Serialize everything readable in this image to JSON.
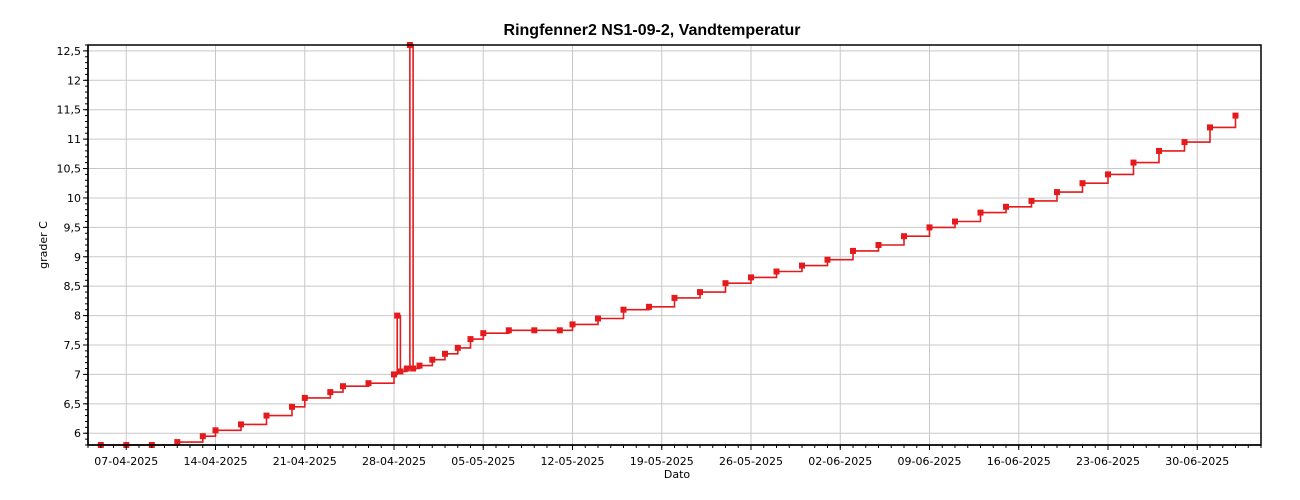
{
  "chart_data": {
    "type": "line",
    "title": "Ringfenner2 NS1-09-2, Vandtemperatur",
    "xlabel": "Dato",
    "ylabel": "grader C",
    "ylim": [
      5.8,
      12.6
    ],
    "xlim": [
      "2025-04-04",
      "2025-07-05"
    ],
    "grid": true,
    "legend": "none",
    "color": "#e41a1c",
    "y_ticks": [
      "6",
      "6,5",
      "7",
      "7,5",
      "8",
      "8,5",
      "9",
      "9,5",
      "10",
      "10,5",
      "11",
      "11,5",
      "12",
      "12,5"
    ],
    "y_tick_values": [
      6,
      6.5,
      7,
      7.5,
      8,
      8.5,
      9,
      9.5,
      10,
      10.5,
      11,
      11.5,
      12,
      12.5
    ],
    "x_ticks": [
      "07-04-2025",
      "14-04-2025",
      "21-04-2025",
      "28-04-2025",
      "05-05-2025",
      "12-05-2025",
      "19-05-2025",
      "26-05-2025",
      "02-06-2025",
      "09-06-2025",
      "16-06-2025",
      "23-06-2025",
      "30-06-2025"
    ],
    "x_tick_dates": [
      "2025-04-07",
      "2025-04-14",
      "2025-04-21",
      "2025-04-28",
      "2025-05-05",
      "2025-05-12",
      "2025-05-19",
      "2025-05-26",
      "2025-06-02",
      "2025-06-09",
      "2025-06-16",
      "2025-06-23",
      "2025-06-30"
    ],
    "series": [
      {
        "x": [
          "2025-04-05",
          "2025-04-07",
          "2025-04-09",
          "2025-04-11",
          "2025-04-13",
          "2025-04-14",
          "2025-04-16",
          "2025-04-18",
          "2025-04-20",
          "2025-04-21",
          "2025-04-23",
          "2025-04-24",
          "2025-04-26",
          "2025-04-28",
          "2025-04-28 06:00",
          "2025-04-28 12:00",
          "2025-04-29",
          "2025-04-29 06:00",
          "2025-04-29 12:00",
          "2025-04-30",
          "2025-05-01",
          "2025-05-02",
          "2025-05-03",
          "2025-05-04",
          "2025-05-05",
          "2025-05-07",
          "2025-05-09",
          "2025-05-11",
          "2025-05-12",
          "2025-05-14",
          "2025-05-16",
          "2025-05-18",
          "2025-05-20",
          "2025-05-22",
          "2025-05-24",
          "2025-05-26",
          "2025-05-28",
          "2025-05-30",
          "2025-06-01",
          "2025-06-03",
          "2025-06-05",
          "2025-06-07",
          "2025-06-09",
          "2025-06-11",
          "2025-06-13",
          "2025-06-15",
          "2025-06-17",
          "2025-06-19",
          "2025-06-21",
          "2025-06-23",
          "2025-06-25",
          "2025-06-27",
          "2025-06-29",
          "2025-07-01",
          "2025-07-03"
        ],
        "y": [
          5.8,
          5.8,
          5.8,
          5.85,
          5.95,
          6.05,
          6.15,
          6.3,
          6.45,
          6.6,
          6.7,
          6.8,
          6.85,
          7.0,
          8.0,
          7.05,
          7.1,
          12.6,
          7.1,
          7.15,
          7.25,
          7.35,
          7.45,
          7.6,
          7.7,
          7.75,
          7.75,
          7.75,
          7.85,
          7.95,
          8.1,
          8.15,
          8.3,
          8.4,
          8.55,
          8.65,
          8.75,
          8.85,
          8.95,
          9.1,
          9.2,
          9.35,
          9.5,
          9.6,
          9.75,
          9.85,
          9.95,
          10.1,
          10.25,
          10.4,
          10.6,
          10.8,
          10.95,
          11.2,
          11.4
        ]
      }
    ]
  }
}
